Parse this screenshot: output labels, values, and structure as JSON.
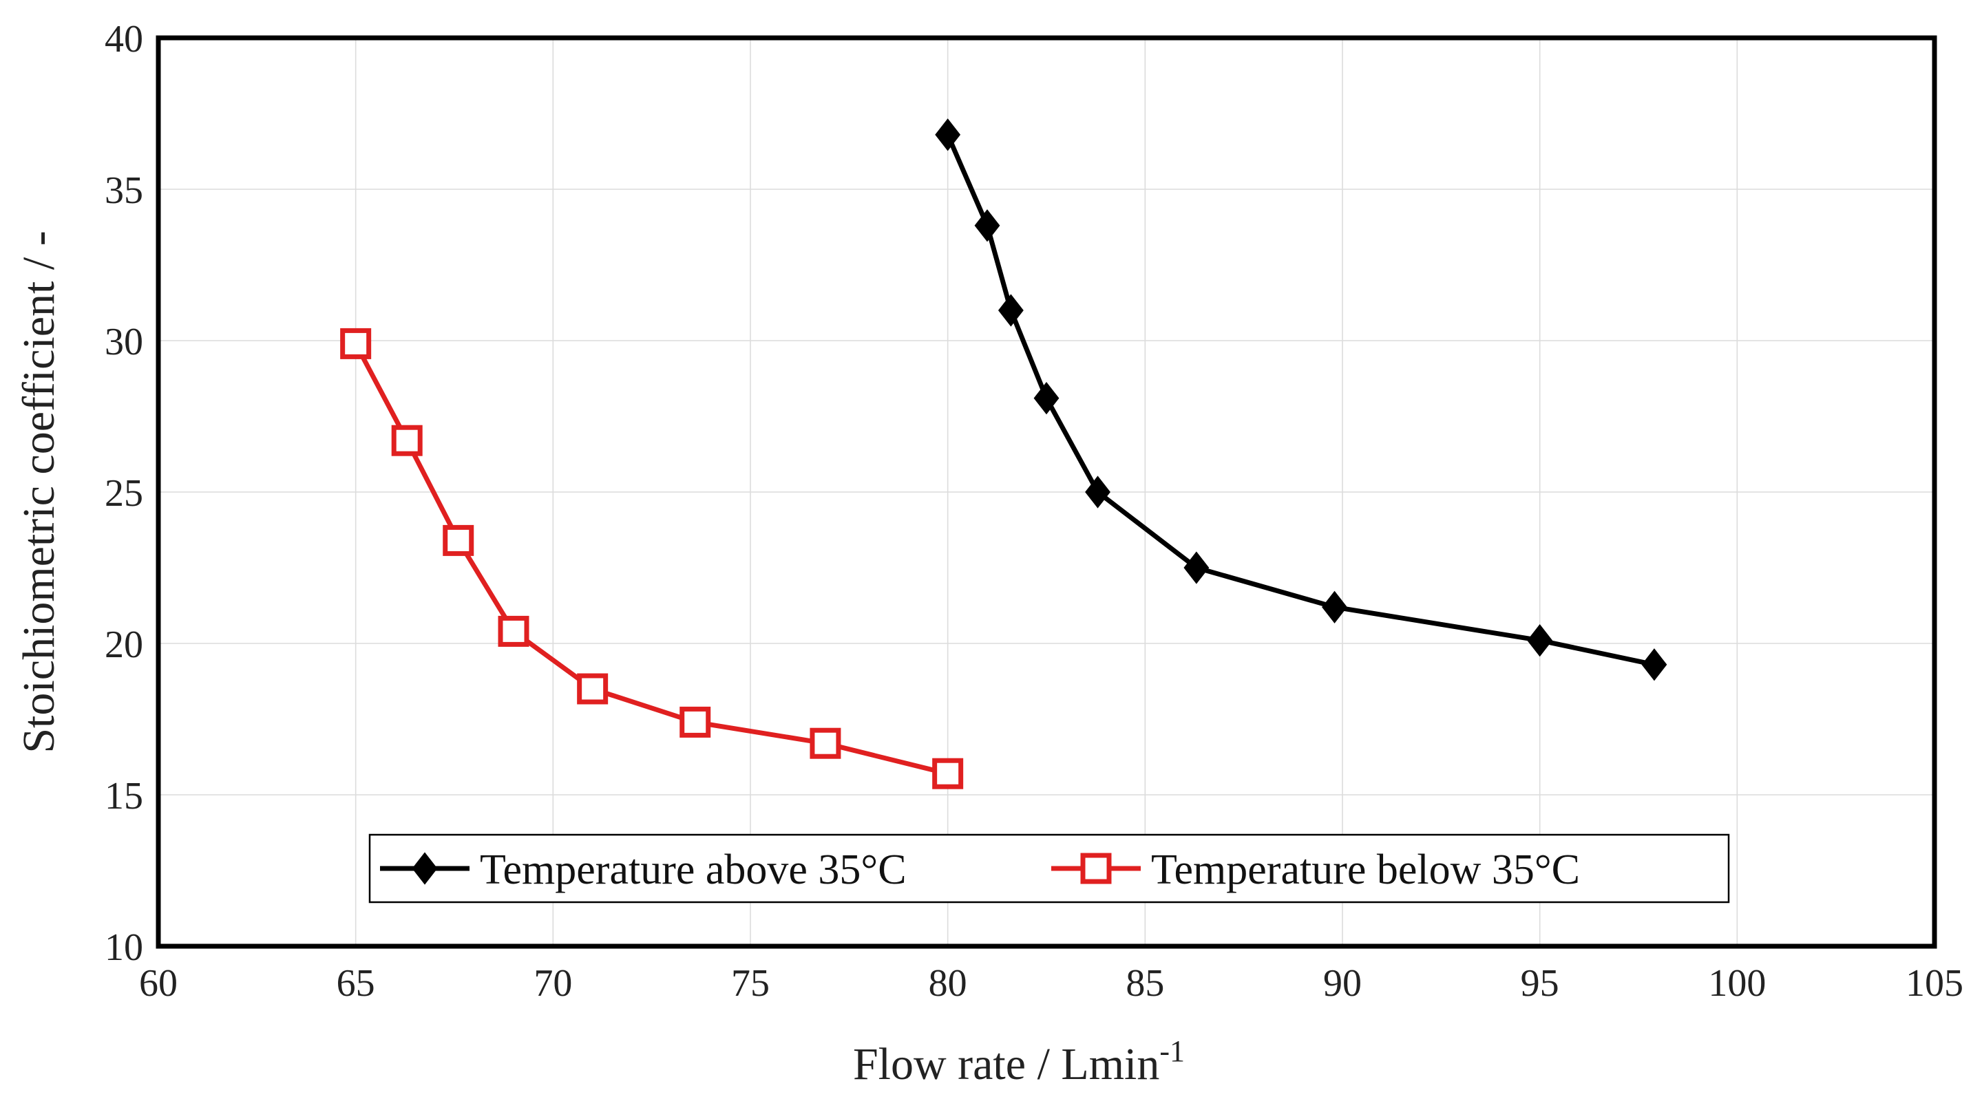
{
  "chart_data": {
    "type": "line",
    "xlabel": "Flow rate / Lmin",
    "xlabel_superscript": "-1",
    "ylabel": "Stoichiometric coefficient / -",
    "xlim": [
      60,
      105
    ],
    "ylim": [
      10,
      40
    ],
    "xticks": [
      60,
      65,
      70,
      75,
      80,
      85,
      90,
      95,
      100,
      105
    ],
    "yticks": [
      10,
      15,
      20,
      25,
      30,
      35,
      40
    ],
    "grid": true,
    "legend_position": "bottom-center",
    "series": [
      {
        "name": "Temperature above 35°C",
        "color": "#000000",
        "marker": "diamond-filled",
        "x": [
          80.0,
          81.0,
          81.6,
          82.5,
          83.8,
          86.3,
          89.8,
          95.0,
          97.9
        ],
        "y": [
          36.8,
          33.8,
          31.0,
          28.1,
          25.0,
          22.5,
          21.2,
          20.1,
          19.3
        ]
      },
      {
        "name": "Temperature below 35°C",
        "color": "#e02020",
        "marker": "square-open",
        "x": [
          65.0,
          66.3,
          67.6,
          69.0,
          71.0,
          73.6,
          76.9,
          80.0
        ],
        "y": [
          29.9,
          26.7,
          23.4,
          20.4,
          18.5,
          17.4,
          16.7,
          15.7
        ]
      }
    ]
  }
}
